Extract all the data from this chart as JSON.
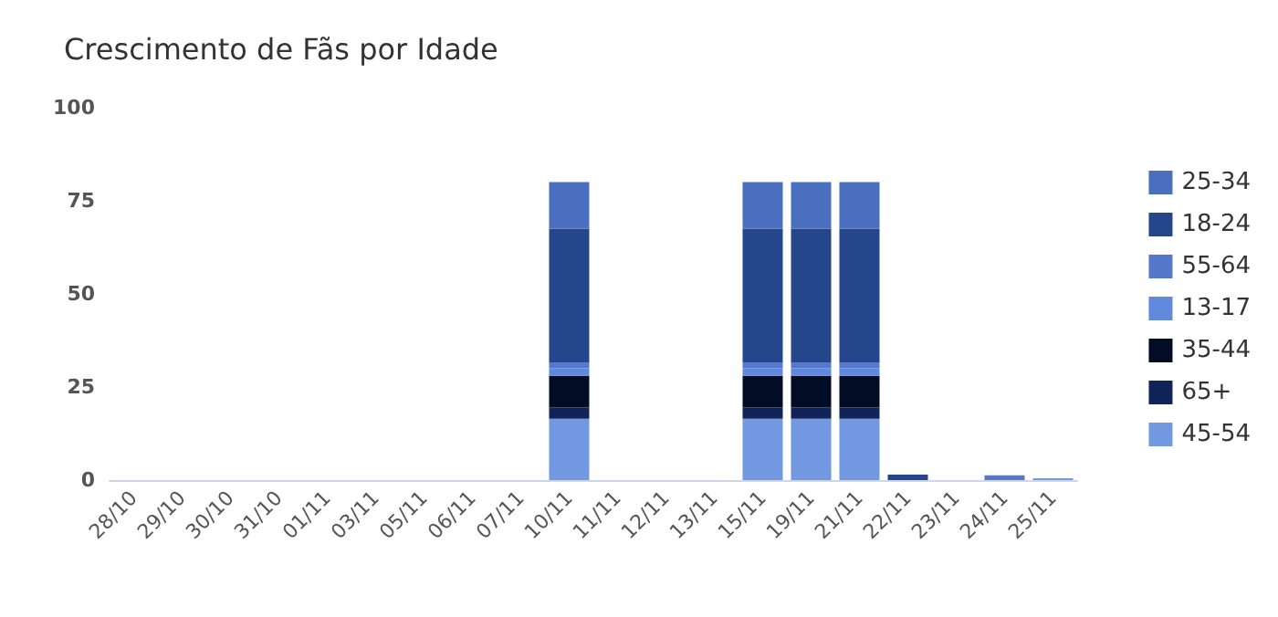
{
  "chart_data": {
    "type": "bar",
    "title": "Crescimento de Fãs por Idade",
    "stacked": true,
    "categories": [
      "28/10",
      "29/10",
      "30/10",
      "31/10",
      "01/11",
      "03/11",
      "05/11",
      "06/11",
      "07/11",
      "10/11",
      "11/11",
      "12/11",
      "13/11",
      "15/11",
      "19/11",
      "21/11",
      "22/11",
      "23/11",
      "24/11",
      "25/11"
    ],
    "series": [
      {
        "name": "45-54",
        "color": "#7298e2",
        "values": [
          null,
          null,
          null,
          null,
          null,
          null,
          null,
          null,
          null,
          16.5,
          null,
          null,
          null,
          16.5,
          16.5,
          16.5,
          null,
          null,
          null,
          0.5
        ]
      },
      {
        "name": "65+",
        "color": "#10245a",
        "values": [
          null,
          null,
          null,
          null,
          null,
          null,
          null,
          null,
          null,
          3,
          null,
          null,
          null,
          3,
          3,
          3,
          null,
          null,
          null,
          null
        ]
      },
      {
        "name": "35-44",
        "color": "#020c24",
        "values": [
          null,
          null,
          null,
          null,
          null,
          null,
          null,
          null,
          null,
          8.5,
          null,
          null,
          null,
          8.5,
          8.5,
          8.5,
          null,
          null,
          null,
          null
        ]
      },
      {
        "name": "13-17",
        "color": "#6088dc",
        "values": [
          null,
          null,
          null,
          null,
          null,
          null,
          null,
          null,
          null,
          2,
          null,
          null,
          null,
          2,
          2,
          2,
          null,
          null,
          null,
          null
        ]
      },
      {
        "name": "55-64",
        "color": "#5578cc",
        "values": [
          null,
          null,
          null,
          null,
          null,
          null,
          null,
          null,
          null,
          1.5,
          null,
          null,
          null,
          1.5,
          1.5,
          1.5,
          null,
          null,
          1.3,
          null
        ]
      },
      {
        "name": "18-24",
        "color": "#25468a",
        "values": [
          null,
          null,
          null,
          null,
          null,
          null,
          null,
          null,
          null,
          36,
          null,
          null,
          null,
          36,
          36,
          36,
          1.5,
          null,
          null,
          null
        ]
      },
      {
        "name": "25-34",
        "color": "#4a6fbf",
        "values": [
          null,
          null,
          null,
          null,
          null,
          null,
          null,
          null,
          null,
          12.5,
          null,
          null,
          null,
          12.5,
          12.5,
          12.5,
          null,
          null,
          null,
          null
        ]
      }
    ],
    "ylim": [
      0,
      100
    ],
    "yticks": [
      0,
      25,
      50,
      75,
      100
    ],
    "grid": false,
    "legend": "right"
  }
}
